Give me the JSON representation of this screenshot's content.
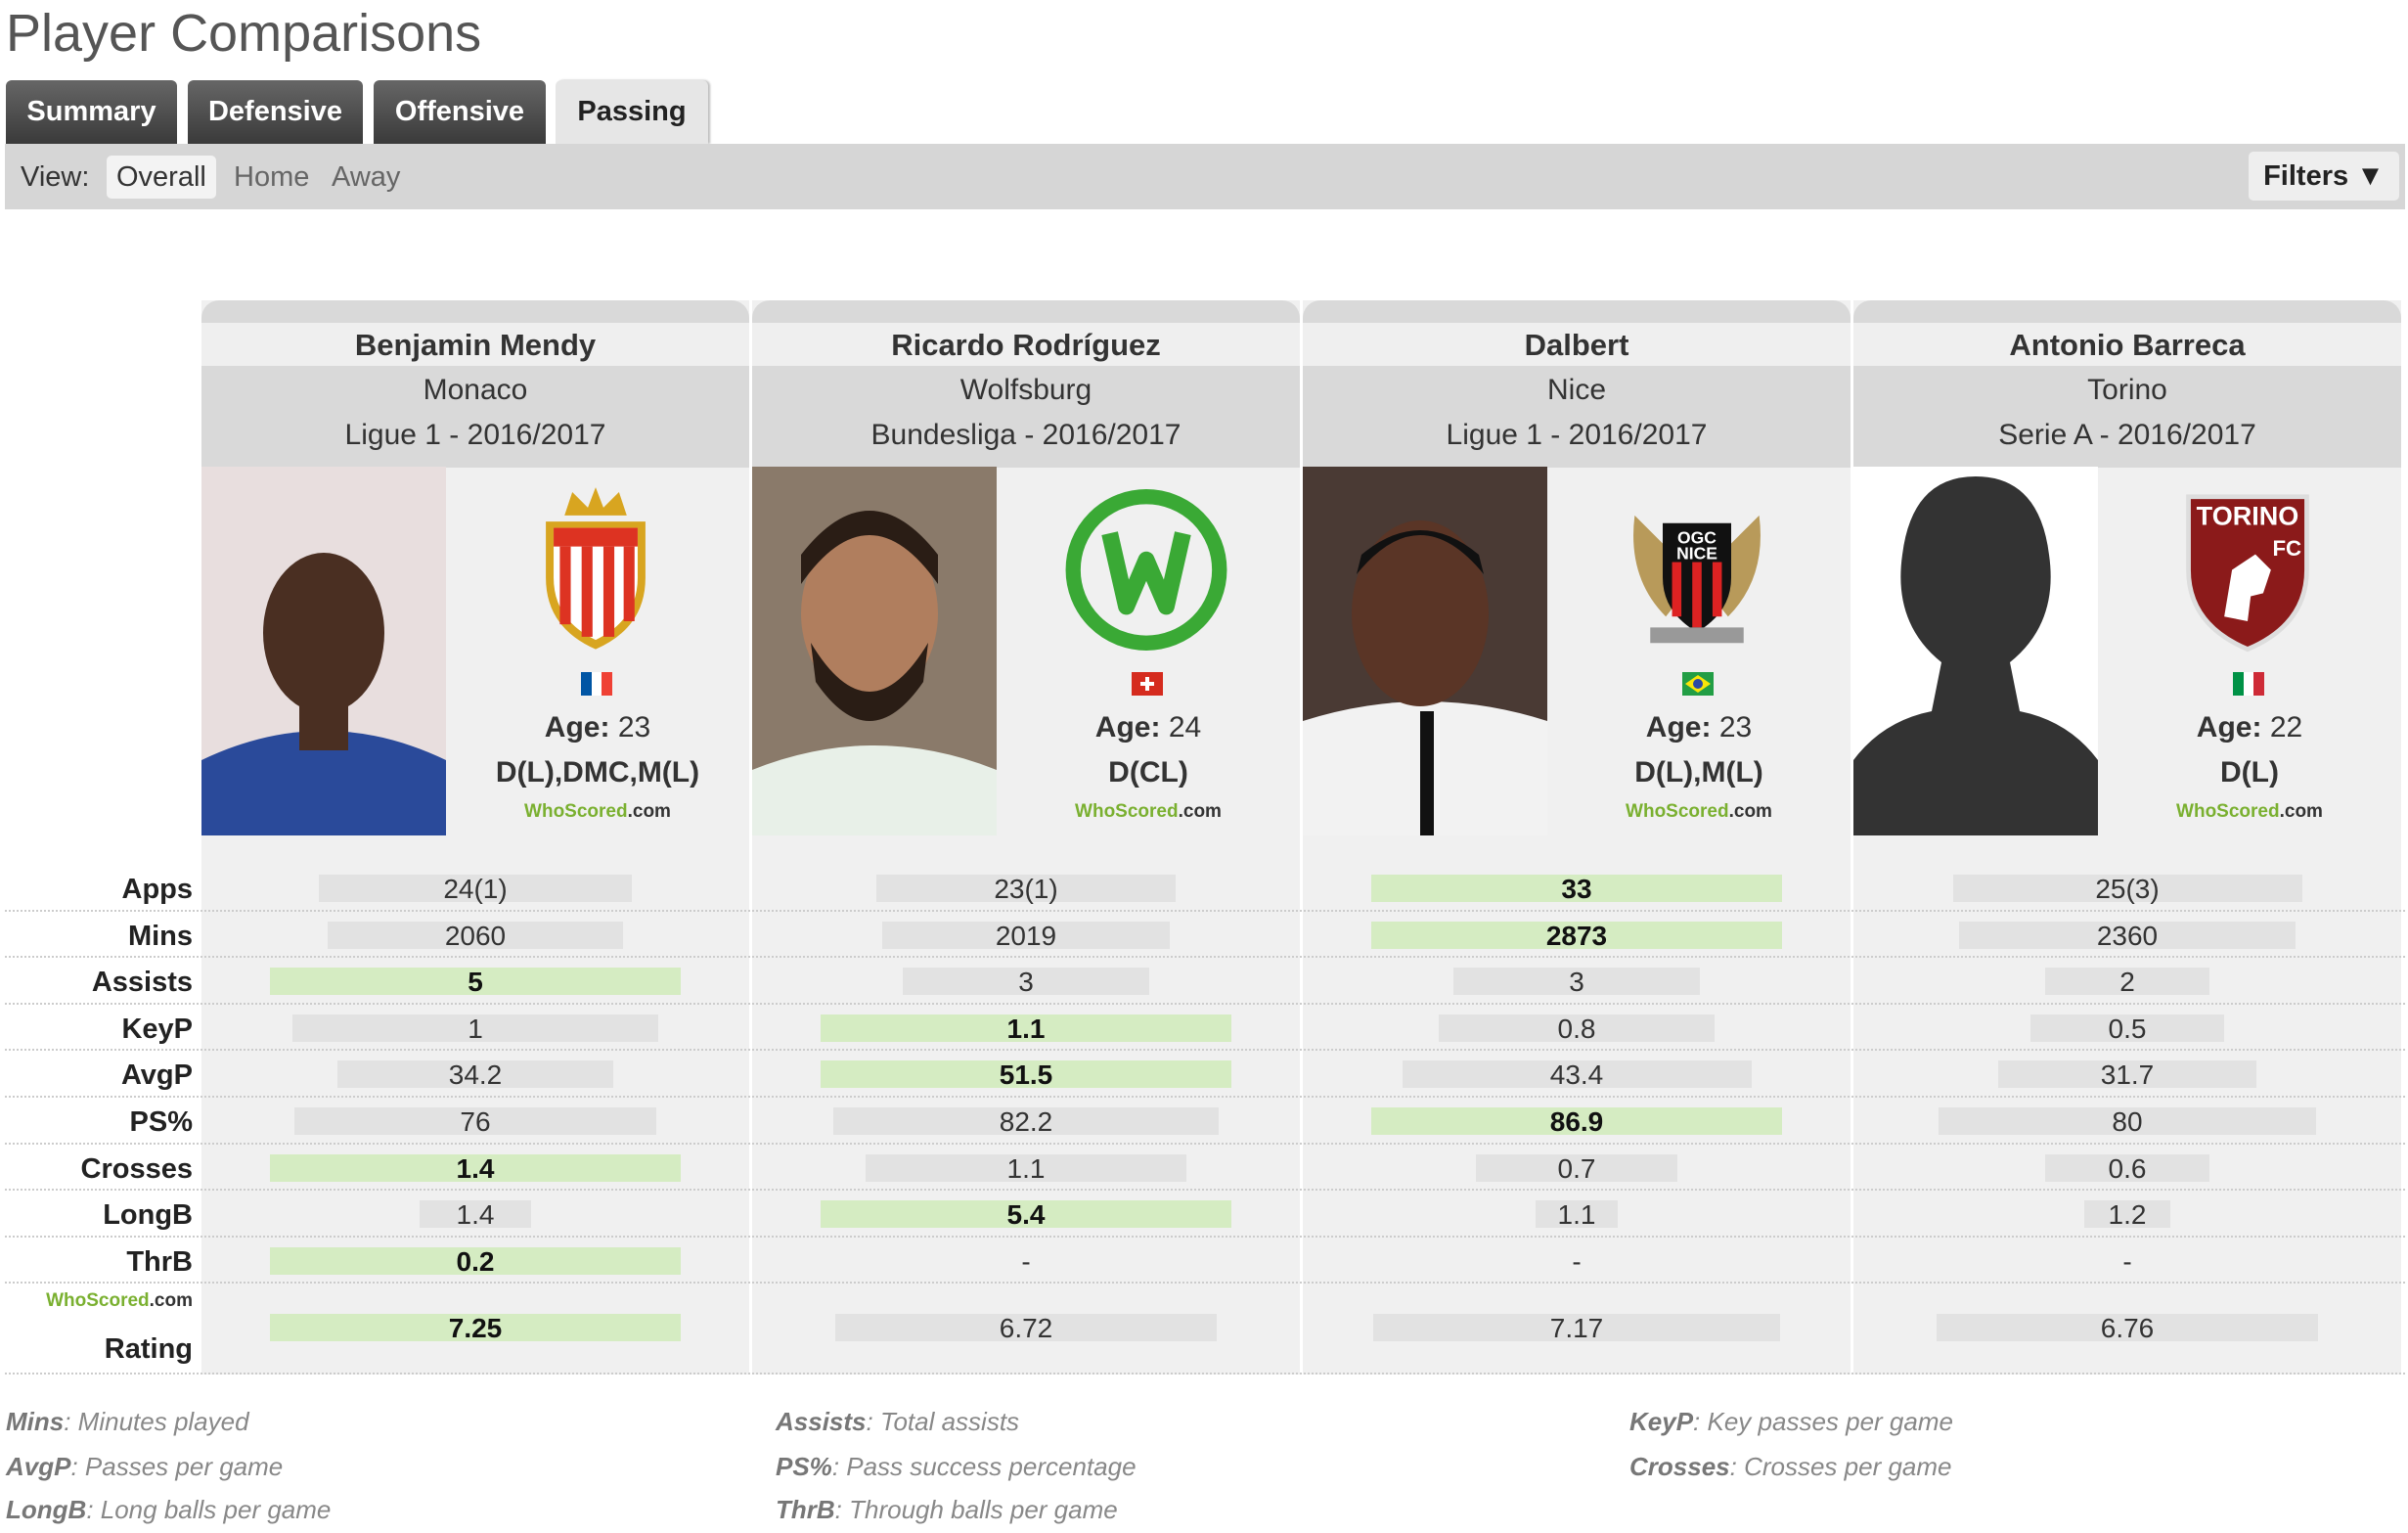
{
  "title": "Player Comparisons",
  "tabs": [
    "Summary",
    "Defensive",
    "Offensive",
    "Passing"
  ],
  "active_tab": "Passing",
  "view": {
    "label": "View:",
    "options": [
      "Overall",
      "Home",
      "Away"
    ],
    "selected": "Overall"
  },
  "filters_label": "Filters ▼",
  "stat_labels": [
    "Apps",
    "Mins",
    "Assists",
    "KeyP",
    "AvgP",
    "PS%",
    "Crosses",
    "LongB",
    "ThrB"
  ],
  "rating": {
    "brand": "WhoScored",
    "brand_suffix": ".com",
    "label": "Rating"
  },
  "colors": {
    "best": "#d5ecc2",
    "bar": "#e2e2e2",
    "tab_dark": "#444444",
    "brand_green": "#7ab030"
  },
  "players": [
    {
      "name": "Benjamin Mendy",
      "club": "Monaco",
      "league": "Ligue 1 - 2016/2017",
      "flag": "france",
      "age_label": "Age:",
      "age": "23",
      "positions": "D(L),DMC,M(L)",
      "logo": "monaco-crest",
      "stats": [
        {
          "v": "24(1)",
          "f": 0.76
        },
        {
          "v": "2060",
          "f": 0.72
        },
        {
          "v": "5",
          "f": 1,
          "best": true
        },
        {
          "v": "1",
          "f": 0.89
        },
        {
          "v": "34.2",
          "f": 0.67
        },
        {
          "v": "76",
          "f": 0.88
        },
        {
          "v": "1.4",
          "f": 1,
          "best": true
        },
        {
          "v": "1.4",
          "f": 0.27
        },
        {
          "v": "0.2",
          "f": 1,
          "best": true
        }
      ],
      "rating": {
        "v": "7.25",
        "f": 1,
        "best": true
      }
    },
    {
      "name": "Ricardo Rodríguez",
      "club": "Wolfsburg",
      "league": "Bundesliga - 2016/2017",
      "flag": "switzerland",
      "age_label": "Age:",
      "age": "24",
      "positions": "D(CL)",
      "logo": "wolfsburg-crest",
      "stats": [
        {
          "v": "23(1)",
          "f": 0.73
        },
        {
          "v": "2019",
          "f": 0.7
        },
        {
          "v": "3",
          "f": 0.6
        },
        {
          "v": "1.1",
          "f": 1,
          "best": true
        },
        {
          "v": "51.5",
          "f": 1,
          "best": true
        },
        {
          "v": "82.2",
          "f": 0.94
        },
        {
          "v": "1.1",
          "f": 0.78
        },
        {
          "v": "5.4",
          "f": 1,
          "best": true
        },
        {
          "v": "-",
          "f": 0
        }
      ],
      "rating": {
        "v": "6.72",
        "f": 0.93
      }
    },
    {
      "name": "Dalbert",
      "club": "Nice",
      "league": "Ligue 1 - 2016/2017",
      "flag": "brazil",
      "age_label": "Age:",
      "age": "23",
      "positions": "D(L),M(L)",
      "logo": "nice-crest",
      "stats": [
        {
          "v": "33",
          "f": 1,
          "best": true
        },
        {
          "v": "2873",
          "f": 1,
          "best": true
        },
        {
          "v": "3",
          "f": 0.6
        },
        {
          "v": "0.8",
          "f": 0.67
        },
        {
          "v": "43.4",
          "f": 0.85
        },
        {
          "v": "86.9",
          "f": 1,
          "best": true
        },
        {
          "v": "0.7",
          "f": 0.49
        },
        {
          "v": "1.1",
          "f": 0.2
        },
        {
          "v": "-",
          "f": 0
        }
      ],
      "rating": {
        "v": "7.17",
        "f": 0.99
      }
    },
    {
      "name": "Antonio Barreca",
      "club": "Torino",
      "league": "Serie A - 2016/2017",
      "flag": "italy",
      "age_label": "Age:",
      "age": "22",
      "positions": "D(L)",
      "logo": "torino-crest",
      "stats": [
        {
          "v": "25(3)",
          "f": 0.85
        },
        {
          "v": "2360",
          "f": 0.82
        },
        {
          "v": "2",
          "f": 0.4
        },
        {
          "v": "0.5",
          "f": 0.47
        },
        {
          "v": "31.7",
          "f": 0.63
        },
        {
          "v": "80",
          "f": 0.92
        },
        {
          "v": "0.6",
          "f": 0.4
        },
        {
          "v": "1.2",
          "f": 0.21
        },
        {
          "v": "-",
          "f": 0
        }
      ],
      "rating": {
        "v": "6.76",
        "f": 0.93
      }
    }
  ],
  "legend": [
    {
      "key": "Mins",
      "desc": ": Minutes played"
    },
    {
      "key": "Assists",
      "desc": ": Total assists"
    },
    {
      "key": "KeyP",
      "desc": ": Key passes per game"
    },
    {
      "key": "AvgP",
      "desc": ": Passes per game"
    },
    {
      "key": "PS%",
      "desc": ": Pass success percentage"
    },
    {
      "key": "Crosses",
      "desc": ": Crosses per game"
    },
    {
      "key": "LongB",
      "desc": ": Long balls per game"
    },
    {
      "key": "ThrB",
      "desc": ": Through balls per game"
    }
  ]
}
